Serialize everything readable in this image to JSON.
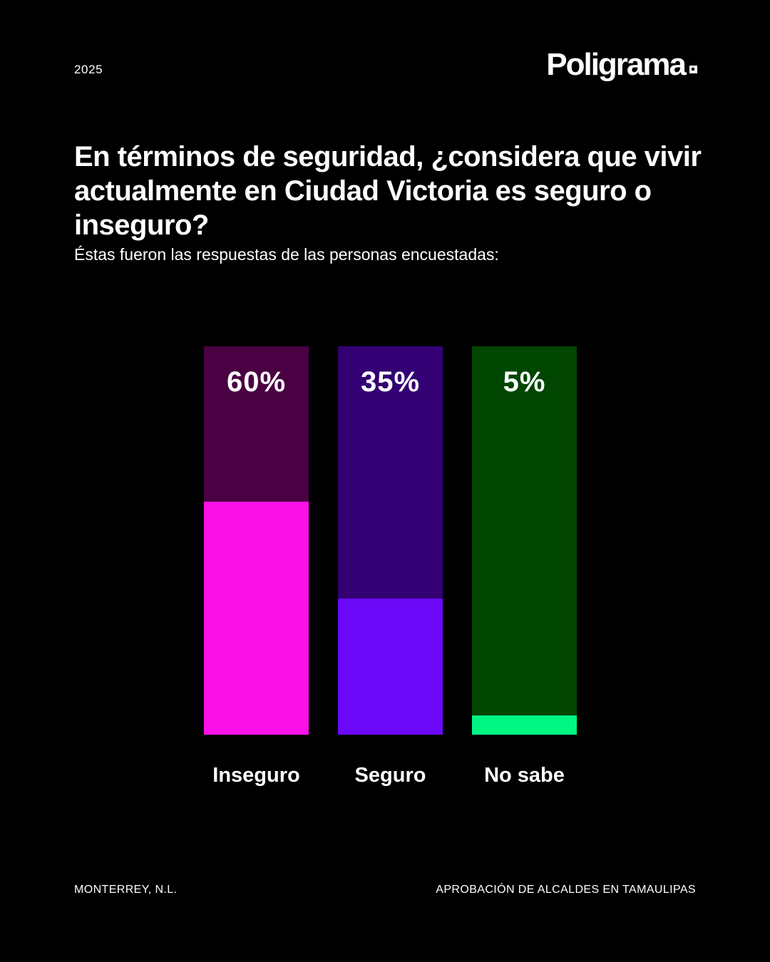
{
  "meta": {
    "year": "2025"
  },
  "brand": {
    "name": "Poligrama"
  },
  "title": "En términos de seguridad, ¿considera que vivir actualmente en Ciudad Victoria es seguro o inseguro?",
  "subtitle": "Éstas fueron las respuestas de las personas encuestadas:",
  "chart_data": {
    "type": "bar",
    "orientation": "vertical",
    "categories": [
      "Inseguro",
      "Seguro",
      "No sabe"
    ],
    "values": [
      60,
      35,
      5
    ],
    "value_labels": [
      "60%",
      "35%",
      "5%"
    ],
    "ylim": [
      0,
      100
    ],
    "grid": false,
    "legend": false,
    "value_label_position": "inside-top",
    "track_colors": [
      "#4a0143",
      "#330173",
      "#014601"
    ],
    "fill_colors": [
      "#fb11e7",
      "#6b09f8",
      "#00f683"
    ],
    "background": "#000000",
    "text_color": "#ffffff"
  },
  "footer": {
    "left": "MONTERREY, N.L.",
    "right": "APROBACIÓN DE ALCALDES EN TAMAULIPAS"
  }
}
